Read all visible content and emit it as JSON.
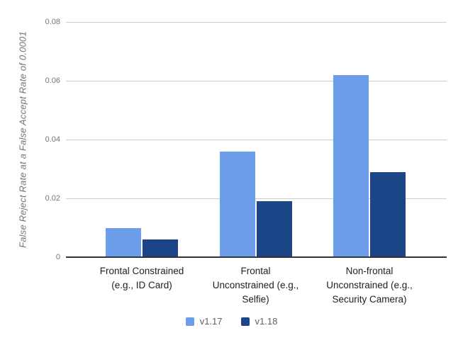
{
  "chart_data": {
    "type": "bar",
    "title": "",
    "xlabel": "",
    "ylabel": "False Reject Rate at a False Accept Rate of 0.0001",
    "ylim": [
      0,
      0.08
    ],
    "grid": true,
    "legend_position": "bottom",
    "yticks": [
      {
        "value": 0,
        "label": "0"
      },
      {
        "value": 0.02,
        "label": "0.02"
      },
      {
        "value": 0.04,
        "label": "0.04"
      },
      {
        "value": 0.06,
        "label": "0.06"
      },
      {
        "value": 0.08,
        "label": "0.08"
      }
    ],
    "categories": [
      "Frontal Constrained (e.g., ID Card)",
      "Frontal Unconstrained (e.g., Selfie)",
      "Non-frontal Unconstrained (e.g., Security Camera)"
    ],
    "category_lines": [
      [
        "Frontal Constrained",
        "(e.g., ID Card)"
      ],
      [
        "Frontal",
        "Unconstrained (e.g.,",
        "Selfie)"
      ],
      [
        "Non-frontal",
        "Unconstrained (e.g.,",
        "Security Camera)"
      ]
    ],
    "series": [
      {
        "name": "v1.17",
        "color": "#6d9eeb",
        "values": [
          0.01,
          0.036,
          0.062
        ]
      },
      {
        "name": "v1.18",
        "color": "#1c4587",
        "values": [
          0.006,
          0.019,
          0.029
        ]
      }
    ]
  },
  "colors": {
    "gridline": "#cccccc",
    "axis_line": "#333333",
    "tick_label": "#757575",
    "category_label": "#212121",
    "legend_label": "#616161",
    "background": "#ffffff"
  }
}
